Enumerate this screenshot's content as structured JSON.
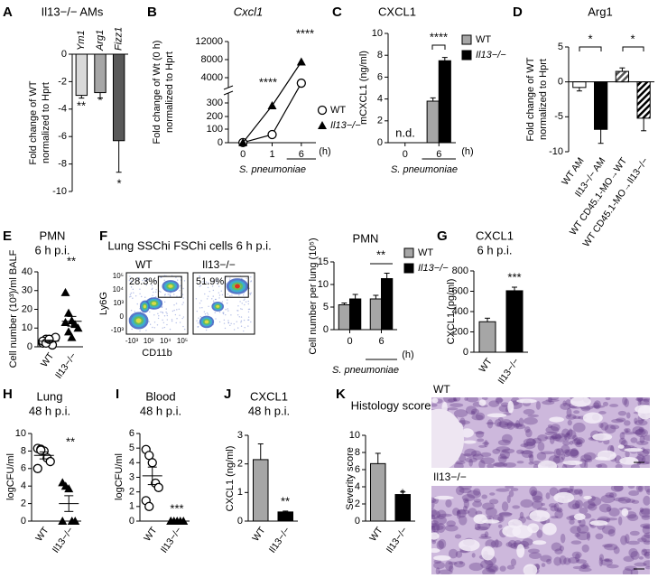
{
  "chart_data": [
    {
      "panel": "A",
      "type": "bar",
      "title": "Il13−/− AMs",
      "ylabel": [
        "Fold change of WT",
        "normalized to Hprt"
      ],
      "categories": [
        "Ym1",
        "Arg1",
        "Fizz1"
      ],
      "values": [
        -3.0,
        -2.8,
        -6.3
      ],
      "errors": [
        0.2,
        0.4,
        2.3
      ],
      "colors": [
        "#d9d9d9",
        "#a6a6a6",
        "#595959"
      ],
      "ylim": [
        -10,
        0
      ],
      "yticks": [
        -10,
        -8,
        -6,
        -4,
        -2,
        0
      ],
      "annotations": [
        "**",
        "*",
        "*"
      ]
    },
    {
      "panel": "B",
      "type": "line",
      "title": "Cxcl1",
      "ylabel": [
        "Fold change of Wt (0 h)",
        "normalized to Hprt"
      ],
      "xlabel": "S. pneumoniae",
      "xunit": "(h)",
      "categories": [
        "0",
        "1",
        "6"
      ],
      "series": [
        {
          "name": "WT",
          "marker": "circle",
          "color": "#000000",
          "values": [
            1,
            60,
            3200
          ]
        },
        {
          "name": "Il13−/−",
          "marker": "triangle",
          "color": "#000000",
          "values": [
            1,
            280,
            7500
          ]
        }
      ],
      "ylim": [
        0,
        12000
      ],
      "yticks": [
        0,
        100,
        200,
        300,
        4000,
        8000,
        12000
      ],
      "annotations": [
        "****",
        "****"
      ]
    },
    {
      "panel": "C",
      "type": "bar",
      "title": "CXCL1",
      "ylabel": [
        "mCXCL1 (ng/ml)"
      ],
      "xlabel": "S. pneumoniae",
      "xunit": "(h)",
      "categories": [
        "0",
        "6"
      ],
      "series": [
        {
          "name": "WT",
          "color": "#a6a6a6",
          "values": [
            null,
            3.8
          ],
          "errors": [
            null,
            0.3
          ]
        },
        {
          "name": "Il13−/−",
          "color": "#000000",
          "values": [
            null,
            7.5
          ],
          "errors": [
            null,
            0.3
          ]
        }
      ],
      "ylim": [
        0,
        10
      ],
      "yticks": [
        0,
        2,
        4,
        6,
        8,
        10
      ],
      "annotations": [
        "n.d.",
        "****"
      ]
    },
    {
      "panel": "D",
      "type": "bar",
      "title": "Arg1",
      "ylabel": [
        "Fold change of WT",
        "normalized to Hprt"
      ],
      "categories": [
        "WT AM",
        "Il13−/− AM",
        "WT CD45.1-MO→WT",
        "WT CD45.1-MO→Il13−/−"
      ],
      "values": [
        -0.8,
        -6.8,
        1.5,
        -5.2
      ],
      "errors": [
        0.5,
        2.0,
        0.5,
        1.8
      ],
      "colors": [
        "#ffffff",
        "#000000",
        "#555555",
        "#000000"
      ],
      "hatched": [
        false,
        false,
        true,
        true
      ],
      "ylim": [
        -10,
        5
      ],
      "yticks": [
        -10,
        -5,
        0,
        5
      ],
      "annotations": [
        "*",
        "*"
      ]
    },
    {
      "panel": "E",
      "type": "scatter",
      "title": "PMN",
      "subtitle": "6 h p.i.",
      "ylabel": [
        "Cell number (10³)/ml BALF"
      ],
      "categories": [
        "WT",
        "Il13−/−"
      ],
      "markers": [
        "circle",
        "triangle"
      ],
      "points": [
        [
          2,
          4,
          3,
          1,
          5,
          3,
          2,
          4
        ],
        [
          29,
          18,
          14,
          12,
          10,
          13,
          8,
          5
        ]
      ],
      "means": [
        3.0,
        13.6
      ],
      "sems": [
        0.5,
        2.6
      ],
      "ylim": [
        0,
        40
      ],
      "yticks": [
        0,
        10,
        20,
        30,
        40
      ],
      "annotations": [
        "**"
      ]
    },
    {
      "panel": "F",
      "type": "flow",
      "title": "Lung SSChi FSChi cells 6 h p.i.",
      "plots": [
        {
          "label": "WT",
          "gate": "28.3%"
        },
        {
          "label": "Il13−/−",
          "gate": "51.9%"
        }
      ],
      "xlabel": "CD11b",
      "ylabel": "Ly6G",
      "xticklabels": [
        "-10³",
        "10³",
        "10⁴",
        "10⁵"
      ],
      "yticklabels": [
        "-10³",
        "0",
        "10³",
        "10⁴",
        "10⁵"
      ]
    },
    {
      "type": "bar",
      "title": "PMN",
      "ylabel": [
        "Cell number per lung (10⁵)"
      ],
      "xlabel": "S. pneumoniae",
      "xunit": "(h)",
      "categories": [
        "0",
        "6"
      ],
      "series": [
        {
          "name": "WT",
          "color": "#a6a6a6",
          "values": [
            5.5,
            6.8
          ],
          "errors": [
            0.4,
            0.8
          ]
        },
        {
          "name": "Il13−/−",
          "color": "#000000",
          "values": [
            6.8,
            11.3
          ],
          "errors": [
            1.0,
            1.2
          ]
        }
      ],
      "ylim": [
        0,
        15
      ],
      "yticks": [
        0,
        5,
        10,
        15
      ],
      "annotations": [
        "**"
      ]
    },
    {
      "panel": "G",
      "type": "bar",
      "title": "CXCL1",
      "subtitle": "6 h p.i.",
      "ylabel": [
        "CXCL1 (pg/ml)"
      ],
      "categories": [
        "WT",
        "Il13−/−"
      ],
      "values": [
        300,
        605
      ],
      "errors": [
        35,
        35
      ],
      "colors": [
        "#a6a6a6",
        "#000000"
      ],
      "ylim": [
        0,
        800
      ],
      "yticks": [
        0,
        200,
        400,
        600,
        800
      ],
      "annotations": [
        "***"
      ]
    },
    {
      "panel": "H",
      "type": "scatter",
      "title": "Lung",
      "subtitle": "48 h p.i.",
      "ylabel": [
        "logCFU/ml"
      ],
      "categories": [
        "WT",
        "Il13−/−"
      ],
      "markers": [
        "circle",
        "triangle"
      ],
      "points": [
        [
          8.3,
          8.2,
          8.0,
          7.2,
          6.8,
          6.0,
          8.1
        ],
        [
          4.4,
          4.0,
          3.7,
          0,
          0,
          0
        ]
      ],
      "means": [
        7.5,
        2.0
      ],
      "sems": [
        0.4,
        0.9
      ],
      "ylim": [
        0,
        10
      ],
      "yticks": [
        0,
        2,
        4,
        6,
        8,
        10
      ],
      "annotations": [
        "**"
      ]
    },
    {
      "panel": "I",
      "type": "scatter",
      "title": "Blood",
      "subtitle": "48 h p.i.",
      "ylabel": [
        "logCFU/ml"
      ],
      "categories": [
        "WT",
        "Il13−/−"
      ],
      "markers": [
        "circle",
        "triangle"
      ],
      "points": [
        [
          4.9,
          4.5,
          4.0,
          2.6,
          2.3,
          1.4,
          1.0
        ],
        [
          0,
          0,
          0,
          0,
          0,
          0
        ]
      ],
      "means": [
        3.1,
        0
      ],
      "sems": [
        0.6,
        0
      ],
      "ylim": [
        0,
        6
      ],
      "yticks": [
        0,
        1,
        2,
        3,
        4,
        5,
        6
      ],
      "annotations": [
        "***"
      ]
    },
    {
      "panel": "J",
      "type": "bar",
      "title": "CXCL1",
      "subtitle": "48 h p.i.",
      "ylabel": [
        "CXCL1 (ng/ml)"
      ],
      "categories": [
        "WT",
        "Il13−/−"
      ],
      "values": [
        2.15,
        0.32
      ],
      "errors": [
        0.55,
        0.03
      ],
      "colors": [
        "#a6a6a6",
        "#000000"
      ],
      "ylim": [
        0,
        3
      ],
      "yticks": [
        0,
        1,
        2,
        3
      ],
      "annotations": [
        "**"
      ]
    },
    {
      "panel": "K",
      "type": "bar",
      "title": "Histology score",
      "ylabel": [
        "Severity score"
      ],
      "categories": [
        "WT",
        "Il13−/−"
      ],
      "values": [
        6.7,
        3.1
      ],
      "errors": [
        1.2,
        0.3
      ],
      "colors": [
        "#a6a6a6",
        "#000000"
      ],
      "ylim": [
        0,
        10
      ],
      "yticks": [
        0,
        2,
        4,
        6,
        8,
        10
      ],
      "annotations": [
        "*"
      ]
    },
    {
      "type": "image",
      "labels": [
        "WT",
        "Il13−/−"
      ]
    }
  ]
}
